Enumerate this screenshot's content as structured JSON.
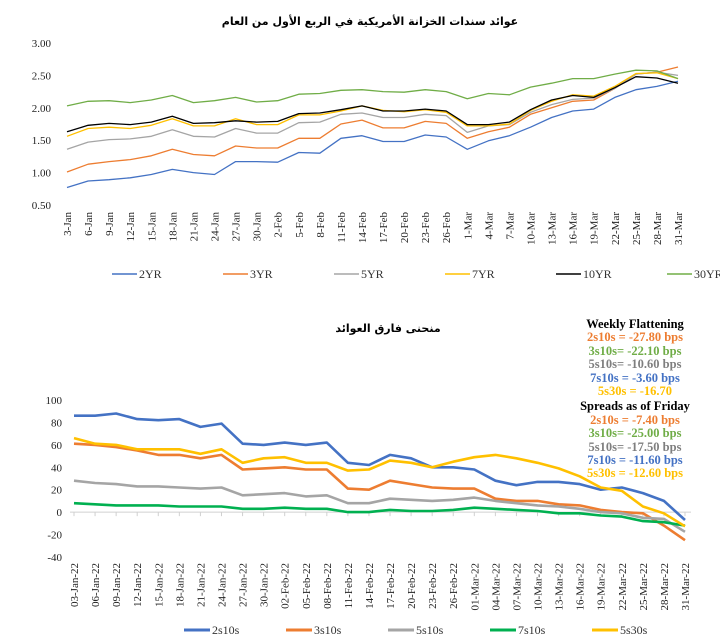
{
  "chart_data": [
    {
      "type": "line",
      "title": "عوائد سندات الخزانة الأمريكية في الربع الأول من العام",
      "xlabel": "",
      "ylabel": "",
      "ylim": [
        0.5,
        3.0
      ],
      "yticks": [
        "0.50",
        "1.00",
        "1.50",
        "2.00",
        "2.50",
        "3.00"
      ],
      "categories": [
        "3-Jan",
        "6-Jan",
        "9-Jan",
        "12-Jan",
        "15-Jan",
        "18-Jan",
        "21-Jan",
        "24-Jan",
        "27-Jan",
        "30-Jan",
        "2-Feb",
        "5-Feb",
        "8-Feb",
        "11-Feb",
        "14-Feb",
        "17-Feb",
        "20-Feb",
        "23-Feb",
        "26-Feb",
        "1-Mar",
        "4-Mar",
        "7-Mar",
        "10-Mar",
        "13-Mar",
        "16-Mar",
        "19-Mar",
        "22-Mar",
        "25-Mar",
        "28-Mar",
        "31-Mar"
      ],
      "legend_position": "bottom",
      "series": [
        {
          "name": "2YR",
          "color": "#4472C4",
          "values": [
            0.77,
            0.87,
            0.89,
            0.92,
            0.97,
            1.05,
            1.0,
            0.97,
            1.17,
            1.17,
            1.16,
            1.31,
            1.3,
            1.53,
            1.57,
            1.48,
            1.48,
            1.58,
            1.55,
            1.36,
            1.49,
            1.57,
            1.7,
            1.85,
            1.95,
            1.98,
            2.16,
            2.28,
            2.33,
            2.41
          ]
        },
        {
          "name": "3YR",
          "color": "#ED7D31",
          "values": [
            1.01,
            1.13,
            1.17,
            1.2,
            1.26,
            1.36,
            1.28,
            1.26,
            1.41,
            1.38,
            1.38,
            1.53,
            1.53,
            1.75,
            1.81,
            1.69,
            1.69,
            1.79,
            1.76,
            1.53,
            1.63,
            1.7,
            1.9,
            2.0,
            2.1,
            2.12,
            2.3,
            2.52,
            2.55,
            2.63
          ]
        },
        {
          "name": "5YR",
          "color": "#A5A5A5",
          "values": [
            1.36,
            1.47,
            1.51,
            1.52,
            1.56,
            1.66,
            1.56,
            1.55,
            1.68,
            1.61,
            1.61,
            1.77,
            1.78,
            1.9,
            1.92,
            1.85,
            1.85,
            1.9,
            1.88,
            1.62,
            1.72,
            1.74,
            1.93,
            2.05,
            2.13,
            2.15,
            2.3,
            2.52,
            2.55,
            2.5
          ]
        },
        {
          "name": "7YR",
          "color": "#FFC000",
          "values": [
            1.56,
            1.68,
            1.7,
            1.68,
            1.73,
            1.83,
            1.72,
            1.72,
            1.83,
            1.74,
            1.74,
            1.89,
            1.89,
            1.95,
            2.03,
            1.96,
            1.94,
            1.97,
            1.93,
            1.72,
            1.72,
            1.75,
            1.96,
            2.1,
            2.2,
            2.18,
            2.33,
            2.53,
            2.54,
            2.45
          ]
        },
        {
          "name": "10YR",
          "color": "#000000",
          "values": [
            1.63,
            1.73,
            1.76,
            1.74,
            1.78,
            1.87,
            1.76,
            1.77,
            1.8,
            1.78,
            1.79,
            1.91,
            1.92,
            1.97,
            2.03,
            1.95,
            1.95,
            1.98,
            1.95,
            1.74,
            1.74,
            1.78,
            1.97,
            2.12,
            2.19,
            2.16,
            2.31,
            2.48,
            2.46,
            2.38
          ]
        },
        {
          "name": "30YR",
          "color": "#70AD47",
          "values": [
            2.03,
            2.1,
            2.11,
            2.08,
            2.12,
            2.19,
            2.08,
            2.11,
            2.16,
            2.09,
            2.11,
            2.21,
            2.22,
            2.27,
            2.28,
            2.25,
            2.24,
            2.28,
            2.25,
            2.14,
            2.22,
            2.2,
            2.32,
            2.38,
            2.45,
            2.45,
            2.52,
            2.58,
            2.57,
            2.45
          ]
        }
      ]
    },
    {
      "type": "line",
      "title": "منحنى فارق العوائد",
      "xlabel": "",
      "ylabel": "",
      "ylim": [
        -40,
        100
      ],
      "yticks": [
        "-40",
        "-20",
        "0",
        "20",
        "40",
        "60",
        "80",
        "100"
      ],
      "categories": [
        "03-Jan-22",
        "06-Jan-22",
        "09-Jan-22",
        "12-Jan-22",
        "15-Jan-22",
        "18-Jan-22",
        "21-Jan-22",
        "24-Jan-22",
        "27-Jan-22",
        "30-Jan-22",
        "02-Feb-22",
        "05-Feb-22",
        "08-Feb-22",
        "11-Feb-22",
        "14-Feb-22",
        "17-Feb-22",
        "20-Feb-22",
        "23-Feb-22",
        "26-Feb-22",
        "01-Mar-22",
        "04-Mar-22",
        "07-Mar-22",
        "10-Mar-22",
        "13-Mar-22",
        "16-Mar-22",
        "19-Mar-22",
        "22-Mar-22",
        "25-Mar-22",
        "28-Mar-22",
        "31-Mar-22"
      ],
      "legend_position": "bottom",
      "series": [
        {
          "name": "2s10s",
          "color": "#4472C4",
          "values": [
            86,
            86,
            88,
            83,
            82,
            83,
            76,
            79,
            61,
            60,
            62,
            60,
            62,
            44,
            42,
            51,
            48,
            40,
            40,
            38,
            28,
            24,
            27,
            27,
            25,
            20,
            22,
            17,
            10,
            -7
          ]
        },
        {
          "name": "3s10s",
          "color": "#ED7D31",
          "values": [
            61,
            60,
            58,
            55,
            51,
            51,
            48,
            51,
            38,
            39,
            40,
            38,
            38,
            21,
            20,
            28,
            25,
            22,
            21,
            21,
            12,
            10,
            10,
            7,
            6,
            2,
            0,
            -1,
            -12,
            -25
          ]
        },
        {
          "name": "5s10s",
          "color": "#A5A5A5",
          "values": [
            28,
            26,
            25,
            23,
            23,
            22,
            21,
            22,
            15,
            16,
            17,
            14,
            15,
            8,
            8,
            12,
            11,
            10,
            11,
            13,
            10,
            8,
            6,
            5,
            3,
            0,
            -1,
            -5,
            -6,
            -17.5
          ]
        },
        {
          "name": "7s10s",
          "color": "#00B050",
          "values": [
            8,
            7,
            6,
            6,
            6,
            5,
            5,
            5,
            3,
            3,
            4,
            3,
            3,
            0,
            0,
            2,
            1,
            1,
            2,
            4,
            3,
            2,
            1,
            -1,
            -1,
            -3,
            -4,
            -8,
            -9,
            -12
          ]
        },
        {
          "name": "5s30s",
          "color": "#FFC000",
          "values": [
            66,
            61,
            60,
            56,
            56,
            56,
            52,
            56,
            44,
            48,
            49,
            44,
            44,
            37,
            38,
            46,
            44,
            40,
            45,
            49,
            51,
            48,
            44,
            39,
            32,
            22,
            19,
            5,
            -1,
            -12.6
          ]
        }
      ]
    }
  ],
  "annotation": {
    "weekly_title": "Weekly Flattening",
    "weekly": [
      {
        "text": "2s10s = -27.80 bps",
        "color": "#ED7D31"
      },
      {
        "text": "3s10s= -22.10 bps",
        "color": "#70AD47"
      },
      {
        "text": "5s10s= -10.60 bps",
        "color": "#7F7F7F"
      },
      {
        "text": "7s10s = -3.60 bps",
        "color": "#4472C4"
      },
      {
        "text": "5s30s = -16.70",
        "color": "#FFC000"
      }
    ],
    "friday_title": "Spreads as of Friday",
    "friday": [
      {
        "text": "2s10s = -7.40 bps",
        "color": "#ED7D31"
      },
      {
        "text": "3s10s= -25.00 bps",
        "color": "#70AD47"
      },
      {
        "text": "5s10s= -17.50 bps",
        "color": "#7F7F7F"
      },
      {
        "text": "7s10s = -11.60 bps",
        "color": "#4472C4"
      },
      {
        "text": "5s30s = -12.60 bps",
        "color": "#FFC000"
      }
    ]
  }
}
